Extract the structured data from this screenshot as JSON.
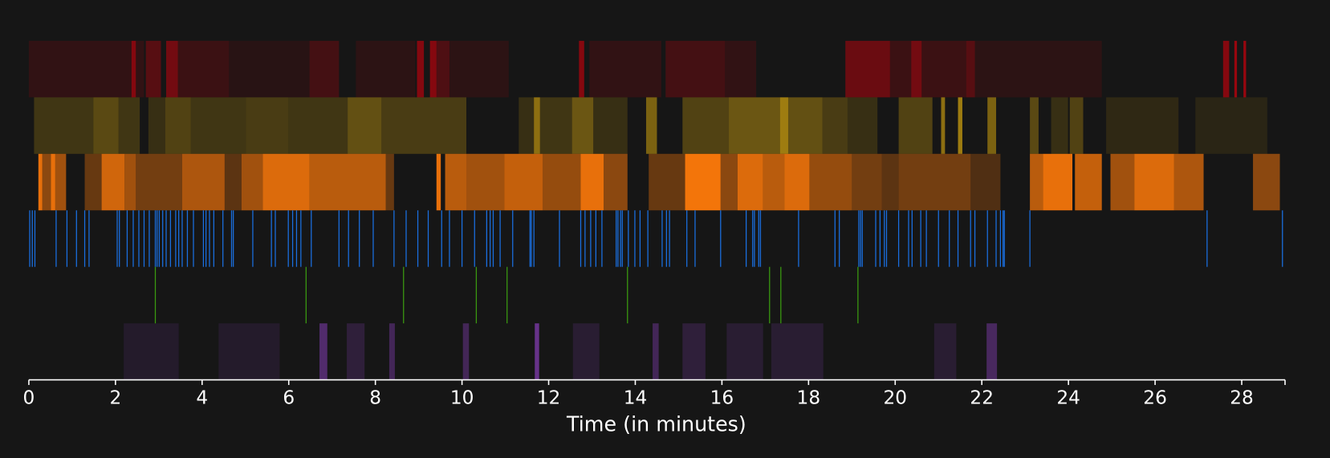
{
  "chart_data": {
    "type": "timeline",
    "x_label": "Time (in minutes)",
    "xlim": [
      0,
      29
    ],
    "xticks": [
      0,
      2,
      4,
      6,
      8,
      10,
      12,
      14,
      16,
      18,
      20,
      22,
      24,
      26,
      28
    ],
    "tracks": [
      {
        "kind": "segments",
        "color": "#d0000c",
        "segments": [
          [
            0,
            2.37,
            0.15
          ],
          [
            2.37,
            2.47,
            0.6
          ],
          [
            2.47,
            2.66,
            0.15
          ],
          [
            2.7,
            3.05,
            0.35
          ],
          [
            3.17,
            3.44,
            0.5
          ],
          [
            3.44,
            4.62,
            0.2
          ],
          [
            4.62,
            6.48,
            0.1
          ],
          [
            6.48,
            7.16,
            0.25
          ],
          [
            7.55,
            8.92,
            0.12
          ],
          [
            8.96,
            9.12,
            0.6
          ],
          [
            9.26,
            9.41,
            0.6
          ],
          [
            9.41,
            9.71,
            0.3
          ],
          [
            9.71,
            11.08,
            0.12
          ],
          [
            12.7,
            12.82,
            0.6
          ],
          [
            12.94,
            14.6,
            0.15
          ],
          [
            14.7,
            16.07,
            0.25
          ],
          [
            16.07,
            16.79,
            0.15
          ],
          [
            18.85,
            19.88,
            0.45
          ],
          [
            19.88,
            20.37,
            0.2
          ],
          [
            20.37,
            20.61,
            0.5
          ],
          [
            20.61,
            21.64,
            0.2
          ],
          [
            21.64,
            21.84,
            0.35
          ],
          [
            21.84,
            24.77,
            0.12
          ],
          [
            27.57,
            27.71,
            0.6
          ],
          [
            27.83,
            27.89,
            0.7
          ],
          [
            28.04,
            28.1,
            0.7
          ]
        ]
      },
      {
        "kind": "segments",
        "color": "#c0960f",
        "segments": [
          [
            0.12,
            1.49,
            0.25
          ],
          [
            1.49,
            2.07,
            0.4
          ],
          [
            2.07,
            2.56,
            0.25
          ],
          [
            2.76,
            3.15,
            0.2
          ],
          [
            3.15,
            3.74,
            0.35
          ],
          [
            3.74,
            5.01,
            0.25
          ],
          [
            5.01,
            5.99,
            0.3
          ],
          [
            5.99,
            7.36,
            0.25
          ],
          [
            7.36,
            8.14,
            0.45
          ],
          [
            8.14,
            10.1,
            0.3
          ],
          [
            11.31,
            11.66,
            0.2
          ],
          [
            11.66,
            11.8,
            0.7
          ],
          [
            11.8,
            12.54,
            0.25
          ],
          [
            12.54,
            13.03,
            0.5
          ],
          [
            13.03,
            13.82,
            0.2
          ],
          [
            14.25,
            14.5,
            0.6
          ],
          [
            15.09,
            16.16,
            0.35
          ],
          [
            16.16,
            17.34,
            0.5
          ],
          [
            17.34,
            17.53,
            0.8
          ],
          [
            17.53,
            18.32,
            0.45
          ],
          [
            18.32,
            18.9,
            0.3
          ],
          [
            18.9,
            19.59,
            0.2
          ],
          [
            20.08,
            20.86,
            0.35
          ],
          [
            21.06,
            21.15,
            0.7
          ],
          [
            21.45,
            21.55,
            0.8
          ],
          [
            22.13,
            22.33,
            0.6
          ],
          [
            23.11,
            23.31,
            0.4
          ],
          [
            23.6,
            23.99,
            0.2
          ],
          [
            24.03,
            24.34,
            0.35
          ],
          [
            24.87,
            26.54,
            0.15
          ],
          [
            26.93,
            28.59,
            0.12
          ]
        ]
      },
      {
        "kind": "segments",
        "color": "#ff7a0a",
        "segments": [
          [
            0.22,
            0.31,
            0.9
          ],
          [
            0.31,
            0.51,
            0.5
          ],
          [
            0.51,
            0.61,
            0.9
          ],
          [
            0.61,
            0.86,
            0.6
          ],
          [
            1.29,
            1.68,
            0.35
          ],
          [
            1.68,
            2.21,
            0.8
          ],
          [
            2.21,
            2.47,
            0.6
          ],
          [
            2.47,
            3.54,
            0.4
          ],
          [
            3.54,
            4.52,
            0.65
          ],
          [
            4.52,
            4.91,
            0.3
          ],
          [
            4.91,
            5.4,
            0.6
          ],
          [
            5.4,
            6.48,
            0.85
          ],
          [
            6.48,
            8.24,
            0.7
          ],
          [
            8.24,
            8.43,
            0.35
          ],
          [
            9.41,
            9.51,
            0.9
          ],
          [
            9.61,
            10.1,
            0.7
          ],
          [
            10.1,
            10.98,
            0.6
          ],
          [
            10.98,
            11.86,
            0.75
          ],
          [
            11.86,
            12.74,
            0.55
          ],
          [
            12.74,
            13.27,
            0.9
          ],
          [
            13.27,
            13.82,
            0.5
          ],
          [
            14.31,
            15.15,
            0.35
          ],
          [
            15.15,
            15.97,
            0.95
          ],
          [
            15.97,
            16.36,
            0.5
          ],
          [
            16.36,
            16.95,
            0.85
          ],
          [
            16.95,
            17.44,
            0.7
          ],
          [
            17.44,
            18.02,
            0.85
          ],
          [
            18.02,
            19.0,
            0.55
          ],
          [
            19.0,
            19.69,
            0.4
          ],
          [
            19.69,
            20.08,
            0.3
          ],
          [
            20.08,
            21.74,
            0.4
          ],
          [
            21.74,
            22.43,
            0.25
          ],
          [
            23.11,
            23.41,
            0.7
          ],
          [
            23.41,
            24.09,
            0.9
          ],
          [
            24.15,
            24.77,
            0.75
          ],
          [
            24.97,
            25.52,
            0.6
          ],
          [
            25.52,
            26.44,
            0.85
          ],
          [
            26.44,
            27.12,
            0.65
          ],
          [
            28.26,
            28.88,
            0.5
          ]
        ]
      },
      {
        "kind": "events",
        "color": "#1a6fe0",
        "events": [
          0.02,
          0.08,
          0.14,
          0.63,
          0.88,
          1.1,
          1.29,
          1.39,
          2.04,
          2.09,
          2.27,
          2.41,
          2.54,
          2.66,
          2.78,
          2.92,
          2.96,
          3.01,
          3.09,
          3.17,
          3.27,
          3.39,
          3.46,
          3.54,
          3.66,
          3.8,
          4.03,
          4.09,
          4.17,
          4.27,
          4.48,
          4.68,
          4.72,
          5.17,
          5.6,
          5.69,
          5.99,
          6.09,
          6.18,
          6.28,
          6.52,
          7.16,
          7.38,
          7.63,
          7.95,
          8.43,
          8.71,
          8.98,
          9.22,
          9.53,
          9.71,
          10.0,
          10.29,
          10.57,
          10.65,
          10.72,
          10.88,
          11.17,
          11.57,
          11.6,
          11.66,
          12.25,
          12.74,
          12.84,
          12.97,
          13.09,
          13.23,
          13.56,
          13.6,
          13.66,
          13.7,
          13.84,
          13.99,
          14.11,
          14.29,
          14.62,
          14.72,
          14.79,
          15.19,
          15.38,
          15.97,
          16.56,
          16.71,
          16.75,
          16.85,
          16.89,
          17.77,
          18.61,
          18.71,
          19.16,
          19.2,
          19.24,
          19.55,
          19.65,
          19.75,
          19.8,
          20.08,
          20.31,
          20.39,
          20.59,
          20.72,
          21.0,
          21.25,
          21.45,
          21.74,
          21.84,
          22.13,
          22.33,
          22.43,
          22.49,
          22.52,
          23.11,
          27.2,
          28.94
        ]
      },
      {
        "kind": "events",
        "color": "#3a9a10",
        "events": [
          2.92,
          6.4,
          8.65,
          10.33,
          11.04,
          13.82,
          17.1,
          17.36,
          19.14
        ]
      },
      {
        "kind": "segments",
        "color": "#7a3aa6",
        "segments": [
          [
            2.19,
            3.46,
            0.15
          ],
          [
            4.38,
            5.79,
            0.15
          ],
          [
            6.71,
            6.89,
            0.6
          ],
          [
            7.34,
            7.75,
            0.25
          ],
          [
            8.32,
            8.45,
            0.45
          ],
          [
            10.02,
            10.16,
            0.45
          ],
          [
            11.68,
            11.78,
            0.8
          ],
          [
            12.56,
            13.17,
            0.2
          ],
          [
            14.4,
            14.54,
            0.45
          ],
          [
            15.09,
            15.62,
            0.25
          ],
          [
            16.11,
            16.95,
            0.2
          ],
          [
            17.14,
            18.34,
            0.2
          ],
          [
            20.9,
            21.41,
            0.2
          ],
          [
            22.11,
            22.35,
            0.5
          ]
        ]
      }
    ]
  }
}
